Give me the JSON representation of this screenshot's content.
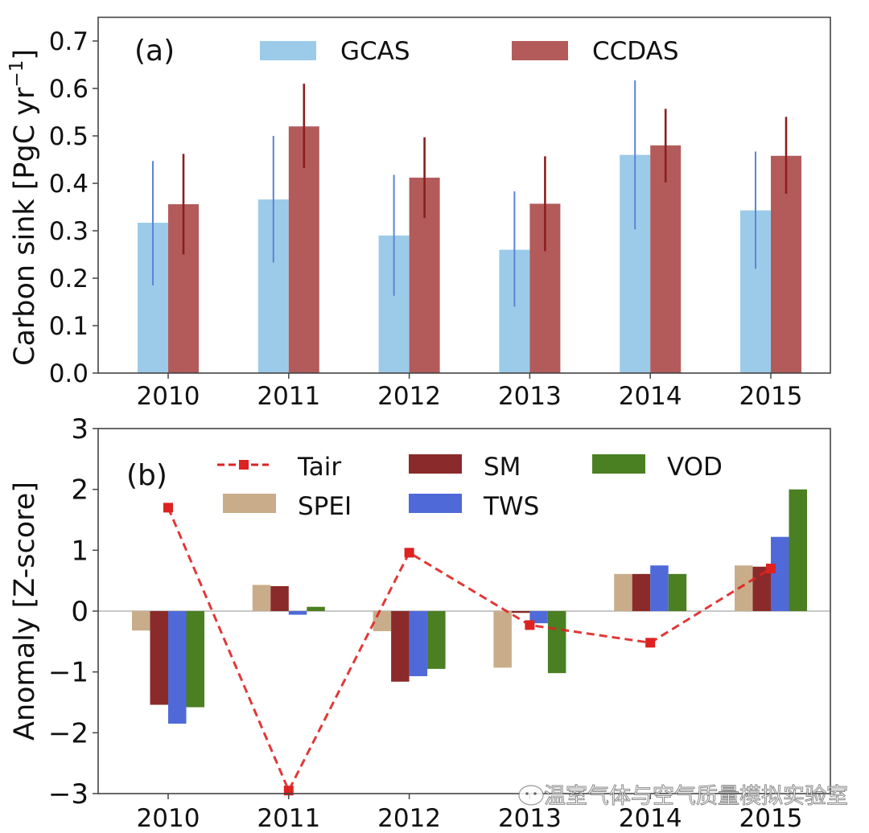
{
  "chart_data": [
    {
      "type": "bar",
      "panel_label": "(a)",
      "title": "",
      "xlabel": "",
      "ylabel": "Carbon sink [PgC yr",
      "ylabel_superscript": "−1",
      "ylabel_close": "]",
      "categories": [
        "2010",
        "2011",
        "2012",
        "2013",
        "2014",
        "2015"
      ],
      "ylim": [
        0.0,
        0.75
      ],
      "yticks": [
        0.0,
        0.1,
        0.2,
        0.3,
        0.4,
        0.5,
        0.6,
        0.7
      ],
      "ytick_labels": [
        "0.0",
        "0.1",
        "0.2",
        "0.3",
        "0.4",
        "0.5",
        "0.6",
        "0.7"
      ],
      "grid": false,
      "legend_position": "top-center",
      "series": [
        {
          "name": "GCAS",
          "color": "#9ccbe9",
          "error_color": "#5b84d6",
          "values": [
            0.317,
            0.366,
            0.29,
            0.26,
            0.46,
            0.343
          ],
          "error_low": [
            0.185,
            0.233,
            0.163,
            0.14,
            0.303,
            0.22
          ],
          "error_high": [
            0.447,
            0.5,
            0.418,
            0.383,
            0.617,
            0.467
          ]
        },
        {
          "name": "CCDAS",
          "color": "#b35b5b",
          "error_color": "#8a1f1f",
          "values": [
            0.356,
            0.52,
            0.412,
            0.357,
            0.48,
            0.458
          ],
          "error_low": [
            0.25,
            0.432,
            0.327,
            0.257,
            0.402,
            0.378
          ],
          "error_high": [
            0.462,
            0.61,
            0.497,
            0.457,
            0.557,
            0.54
          ]
        }
      ]
    },
    {
      "type": "bar",
      "panel_label": "(b)",
      "title": "",
      "xlabel": "",
      "ylabel": "Anomaly [Z-score]",
      "categories": [
        "2010",
        "2011",
        "2012",
        "2013",
        "2014",
        "2015"
      ],
      "ylim": [
        -3,
        3
      ],
      "yticks": [
        -3,
        -2,
        -1,
        0,
        1,
        2,
        3
      ],
      "ytick_labels": [
        "−3",
        "−2",
        "−1",
        "0",
        "1",
        "2",
        "3"
      ],
      "grid": false,
      "zero_line": true,
      "legend_position": "top",
      "series": [
        {
          "name": "SPEI",
          "kind": "bar",
          "color": "#c9ad8a",
          "values": [
            -0.32,
            0.43,
            -0.33,
            -0.93,
            0.61,
            0.75
          ]
        },
        {
          "name": "SM",
          "kind": "bar",
          "color": "#8b2a2a",
          "values": [
            -1.54,
            0.41,
            -1.16,
            -0.03,
            0.61,
            0.73
          ]
        },
        {
          "name": "TWS",
          "kind": "bar",
          "color": "#4f6ad8",
          "values": [
            -1.85,
            -0.06,
            -1.07,
            -0.2,
            0.75,
            1.22
          ]
        },
        {
          "name": "VOD",
          "kind": "bar",
          "color": "#4a7f22",
          "values": [
            -1.58,
            0.07,
            -0.95,
            -1.02,
            0.61,
            2.0
          ]
        },
        {
          "name": "Tair",
          "kind": "line",
          "line_style": "dashed",
          "marker": "square",
          "color": "#dd2222",
          "values": [
            1.7,
            -2.95,
            0.96,
            -0.23,
            -0.52,
            0.7
          ]
        }
      ]
    }
  ],
  "watermark": {
    "icon": "wechat-icon",
    "text": "温室气体与空气质量模拟实验室"
  }
}
